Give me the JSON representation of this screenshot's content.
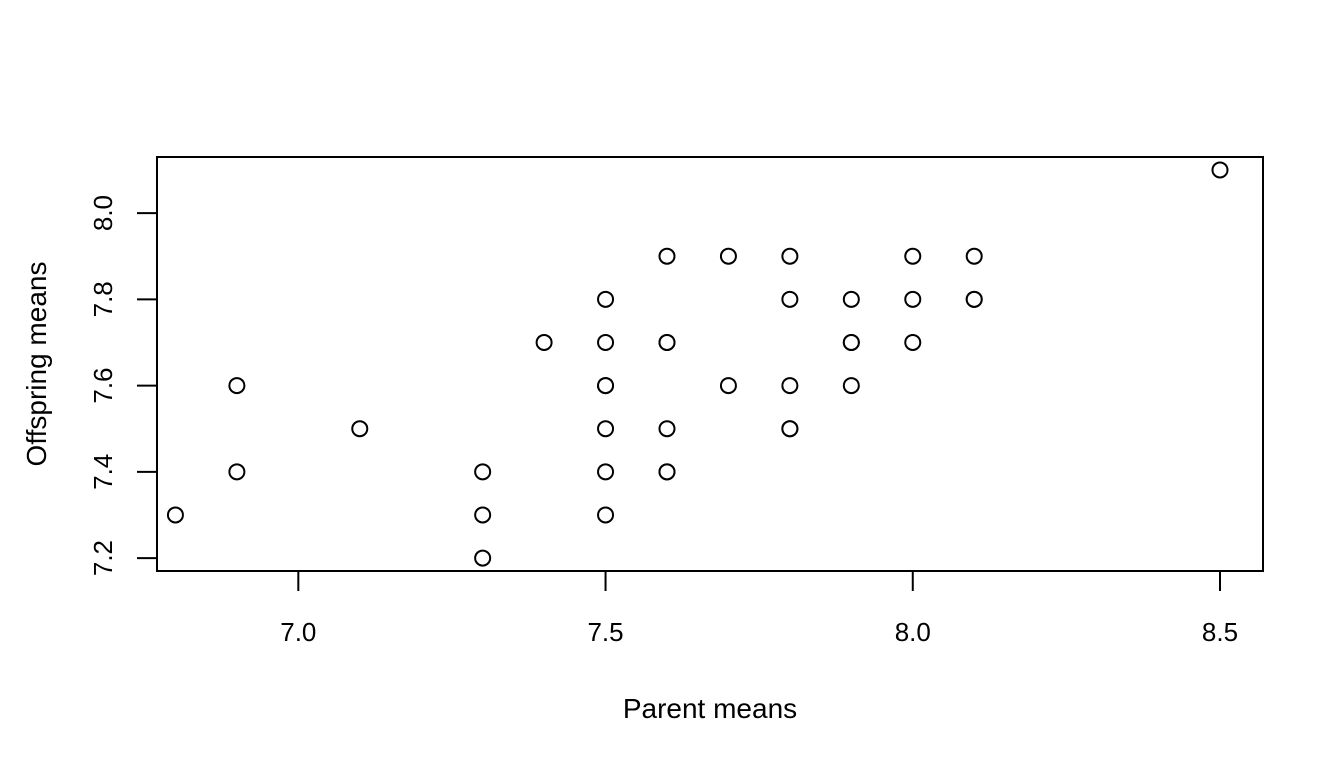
{
  "chart_data": {
    "type": "scatter",
    "title": "",
    "xlabel": "Parent means",
    "ylabel": "Offspring means",
    "xlim": [
      6.77,
      8.57
    ],
    "ylim": [
      7.17,
      8.13
    ],
    "xticks": [
      7.0,
      7.5,
      8.0,
      8.5
    ],
    "xtick_labels": [
      "7.0",
      "7.5",
      "8.0",
      "8.5"
    ],
    "yticks": [
      7.2,
      7.4,
      7.6,
      7.8,
      8.0
    ],
    "ytick_labels": [
      "7.2",
      "7.4",
      "7.6",
      "7.8",
      "8.0"
    ],
    "grid": false,
    "marker": "open-circle",
    "colors": {
      "stroke": "#000000",
      "fill": "#ffffff"
    },
    "points": [
      {
        "x": 6.8,
        "y": 7.3
      },
      {
        "x": 6.9,
        "y": 7.6
      },
      {
        "x": 6.9,
        "y": 7.4
      },
      {
        "x": 7.1,
        "y": 7.5
      },
      {
        "x": 7.3,
        "y": 7.4
      },
      {
        "x": 7.3,
        "y": 7.3
      },
      {
        "x": 7.3,
        "y": 7.2
      },
      {
        "x": 7.4,
        "y": 7.7
      },
      {
        "x": 7.5,
        "y": 7.8
      },
      {
        "x": 7.5,
        "y": 7.7
      },
      {
        "x": 7.5,
        "y": 7.6
      },
      {
        "x": 7.5,
        "y": 7.6
      },
      {
        "x": 7.5,
        "y": 7.5
      },
      {
        "x": 7.5,
        "y": 7.4
      },
      {
        "x": 7.5,
        "y": 7.3
      },
      {
        "x": 7.6,
        "y": 7.9
      },
      {
        "x": 7.6,
        "y": 7.7
      },
      {
        "x": 7.6,
        "y": 7.7
      },
      {
        "x": 7.6,
        "y": 7.5
      },
      {
        "x": 7.6,
        "y": 7.4
      },
      {
        "x": 7.6,
        "y": 7.4
      },
      {
        "x": 7.7,
        "y": 7.9
      },
      {
        "x": 7.7,
        "y": 7.6
      },
      {
        "x": 7.8,
        "y": 7.9
      },
      {
        "x": 7.8,
        "y": 7.8
      },
      {
        "x": 7.8,
        "y": 7.6
      },
      {
        "x": 7.8,
        "y": 7.5
      },
      {
        "x": 7.8,
        "y": 7.5
      },
      {
        "x": 7.9,
        "y": 7.8
      },
      {
        "x": 7.9,
        "y": 7.7
      },
      {
        "x": 7.9,
        "y": 7.7
      },
      {
        "x": 7.9,
        "y": 7.6
      },
      {
        "x": 8.0,
        "y": 7.9
      },
      {
        "x": 8.0,
        "y": 7.8
      },
      {
        "x": 8.0,
        "y": 7.7
      },
      {
        "x": 8.1,
        "y": 7.9
      },
      {
        "x": 8.1,
        "y": 7.8
      },
      {
        "x": 8.1,
        "y": 7.8
      },
      {
        "x": 8.5,
        "y": 8.1
      }
    ]
  }
}
